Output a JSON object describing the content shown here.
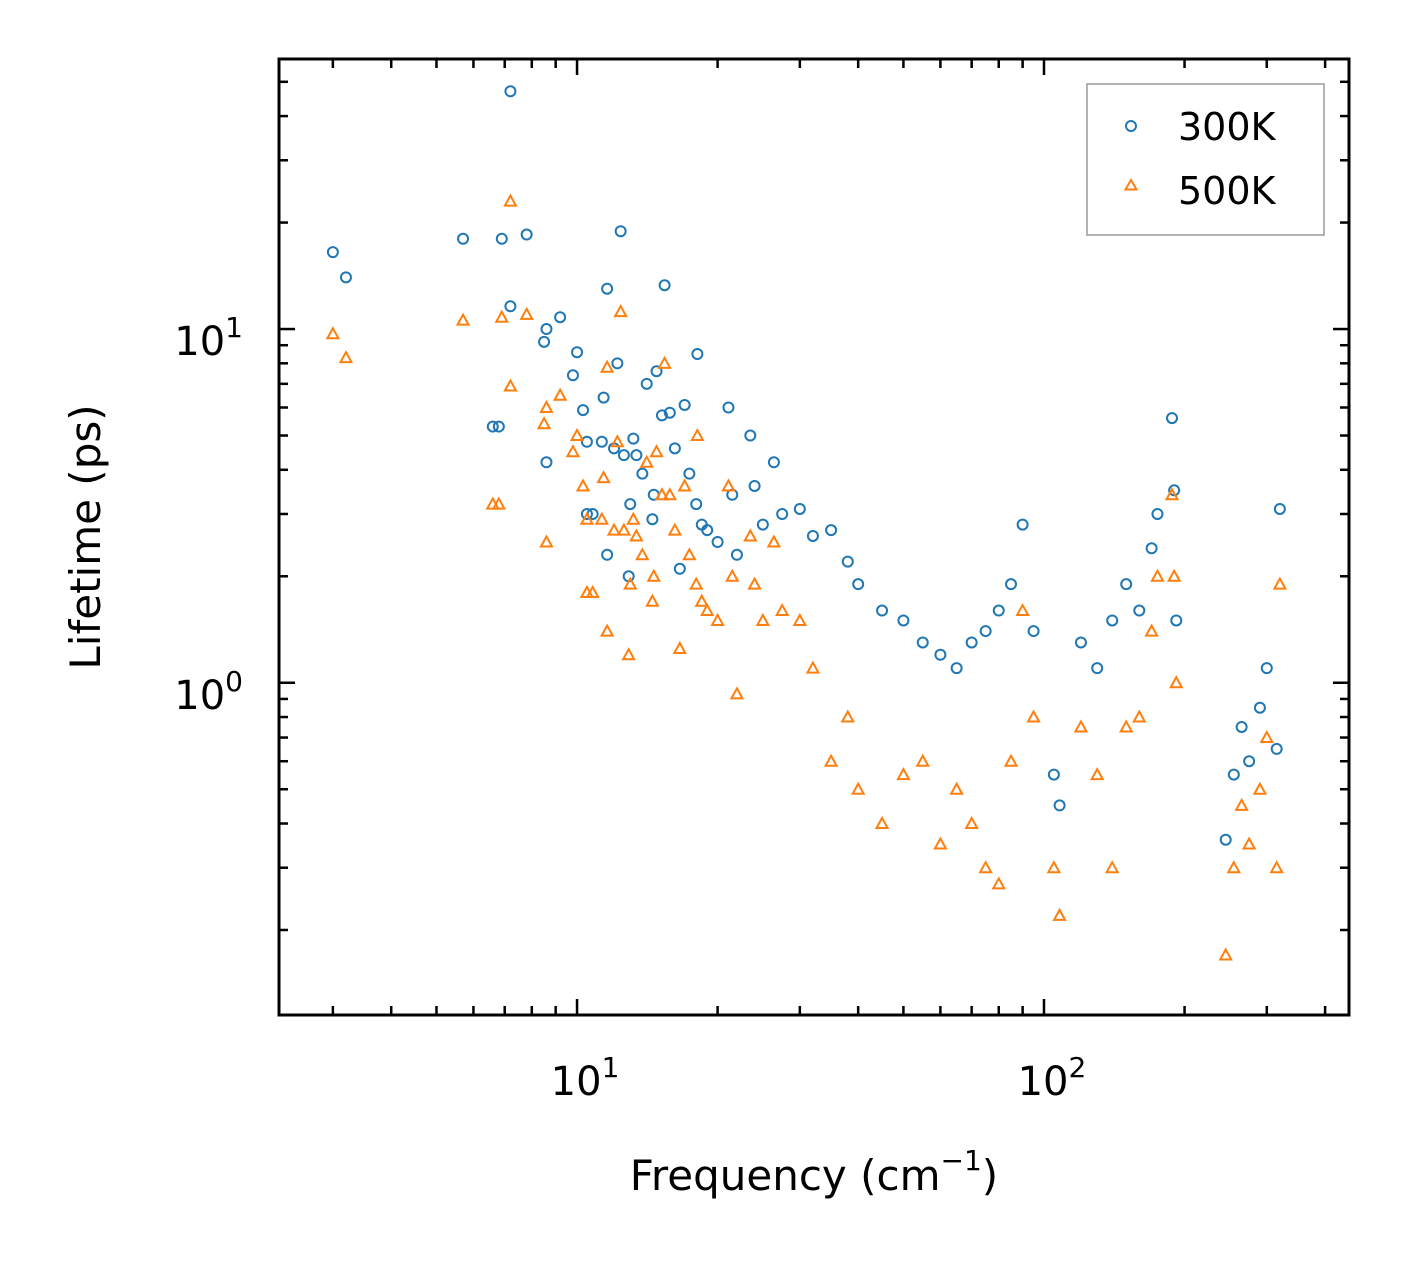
{
  "chart_data": {
    "type": "scatter",
    "title": "",
    "xlabel": "Frequency (cm",
    "xlabel_sup": "−1",
    "xlabel_close": ")",
    "ylabel": "Lifetime (ps)",
    "xscale": "log",
    "yscale": "log",
    "xlim": [
      2.3,
      450
    ],
    "ylim": [
      0.115,
      58
    ],
    "x_ticks": [
      {
        "base": "10",
        "exp": "1",
        "value": 10
      },
      {
        "base": "10",
        "exp": "2",
        "value": 100
      }
    ],
    "y_ticks": [
      {
        "base": "10",
        "exp": "0",
        "value": 1
      },
      {
        "base": "10",
        "exp": "1",
        "value": 10
      }
    ],
    "legend_position": "top-right",
    "series": [
      {
        "name": "300K",
        "marker": "circle",
        "color": "#1f77b4",
        "points": [
          [
            3.0,
            16.5
          ],
          [
            3.2,
            14.0
          ],
          [
            5.7,
            18.0
          ],
          [
            6.6,
            5.3
          ],
          [
            6.8,
            5.3
          ],
          [
            6.9,
            18.0
          ],
          [
            7.2,
            47.0
          ],
          [
            7.2,
            11.6
          ],
          [
            7.8,
            18.5
          ],
          [
            8.5,
            9.2
          ],
          [
            8.6,
            10.0
          ],
          [
            8.6,
            4.2
          ],
          [
            9.2,
            10.8
          ],
          [
            9.8,
            7.4
          ],
          [
            10.0,
            8.6
          ],
          [
            10.3,
            5.9
          ],
          [
            10.5,
            4.8
          ],
          [
            10.5,
            3.0
          ],
          [
            10.8,
            3.0
          ],
          [
            11.3,
            4.8
          ],
          [
            11.4,
            6.4
          ],
          [
            11.6,
            13.0
          ],
          [
            11.6,
            2.3
          ],
          [
            12.0,
            4.6
          ],
          [
            12.2,
            8.0
          ],
          [
            12.4,
            18.9
          ],
          [
            12.6,
            4.4
          ],
          [
            12.9,
            2.0
          ],
          [
            13.0,
            3.2
          ],
          [
            13.2,
            4.9
          ],
          [
            13.4,
            4.4
          ],
          [
            13.8,
            3.9
          ],
          [
            14.1,
            7.0
          ],
          [
            14.5,
            2.9
          ],
          [
            14.6,
            3.4
          ],
          [
            14.8,
            7.6
          ],
          [
            15.2,
            5.7
          ],
          [
            15.4,
            13.3
          ],
          [
            15.8,
            5.8
          ],
          [
            16.2,
            4.6
          ],
          [
            16.6,
            2.1
          ],
          [
            17.0,
            6.1
          ],
          [
            17.4,
            3.9
          ],
          [
            18.0,
            3.2
          ],
          [
            18.1,
            8.5
          ],
          [
            18.5,
            2.8
          ],
          [
            19.0,
            2.7
          ],
          [
            20.0,
            2.5
          ],
          [
            21.1,
            6.0
          ],
          [
            21.5,
            3.4
          ],
          [
            22.0,
            2.3
          ],
          [
            23.5,
            5.0
          ],
          [
            24.0,
            3.6
          ],
          [
            25.0,
            2.8
          ],
          [
            26.4,
            4.2
          ],
          [
            27.5,
            3.0
          ],
          [
            30.0,
            3.1
          ],
          [
            32.0,
            2.6
          ],
          [
            35.0,
            2.7
          ],
          [
            38.0,
            2.2
          ],
          [
            40.0,
            1.9
          ],
          [
            45.0,
            1.6
          ],
          [
            50.0,
            1.5
          ],
          [
            55.0,
            1.3
          ],
          [
            60.0,
            1.2
          ],
          [
            65.0,
            1.1
          ],
          [
            70.0,
            1.3
          ],
          [
            75.0,
            1.4
          ],
          [
            80.0,
            1.6
          ],
          [
            85.0,
            1.9
          ],
          [
            90.0,
            2.8
          ],
          [
            95.0,
            1.4
          ],
          [
            105.0,
            0.55
          ],
          [
            108.0,
            0.45
          ],
          [
            120.0,
            1.3
          ],
          [
            130.0,
            1.1
          ],
          [
            140.0,
            1.5
          ],
          [
            150.0,
            1.9
          ],
          [
            160.0,
            1.6
          ],
          [
            170.0,
            2.4
          ],
          [
            175.0,
            3.0
          ],
          [
            188.0,
            5.6
          ],
          [
            190.0,
            3.5
          ],
          [
            192.0,
            1.5
          ],
          [
            245.0,
            0.36
          ],
          [
            255.0,
            0.55
          ],
          [
            265.0,
            0.75
          ],
          [
            275.0,
            0.6
          ],
          [
            290.0,
            0.85
          ],
          [
            300.0,
            1.1
          ],
          [
            315.0,
            0.65
          ],
          [
            320.0,
            3.1
          ]
        ]
      },
      {
        "name": "500K",
        "marker": "triangle",
        "color": "#ff7f0e",
        "points": [
          [
            3.0,
            9.7
          ],
          [
            3.2,
            8.3
          ],
          [
            5.7,
            10.6
          ],
          [
            6.6,
            3.2
          ],
          [
            6.8,
            3.2
          ],
          [
            6.9,
            10.8
          ],
          [
            7.2,
            23.0
          ],
          [
            7.2,
            6.9
          ],
          [
            7.8,
            11.0
          ],
          [
            8.5,
            5.4
          ],
          [
            8.6,
            6.0
          ],
          [
            8.6,
            2.5
          ],
          [
            9.2,
            6.5
          ],
          [
            9.8,
            4.5
          ],
          [
            10.0,
            5.0
          ],
          [
            10.3,
            3.6
          ],
          [
            10.5,
            2.9
          ],
          [
            10.5,
            1.8
          ],
          [
            10.8,
            1.8
          ],
          [
            11.3,
            2.9
          ],
          [
            11.4,
            3.8
          ],
          [
            11.6,
            7.8
          ],
          [
            11.6,
            1.4
          ],
          [
            12.0,
            2.7
          ],
          [
            12.2,
            4.8
          ],
          [
            12.4,
            11.2
          ],
          [
            12.6,
            2.7
          ],
          [
            12.9,
            1.2
          ],
          [
            13.0,
            1.9
          ],
          [
            13.2,
            2.9
          ],
          [
            13.4,
            2.6
          ],
          [
            13.8,
            2.3
          ],
          [
            14.1,
            4.2
          ],
          [
            14.5,
            1.7
          ],
          [
            14.6,
            2.0
          ],
          [
            14.8,
            4.5
          ],
          [
            15.2,
            3.4
          ],
          [
            15.4,
            8.0
          ],
          [
            15.8,
            3.4
          ],
          [
            16.2,
            2.7
          ],
          [
            16.6,
            1.25
          ],
          [
            17.0,
            3.6
          ],
          [
            17.4,
            2.3
          ],
          [
            18.0,
            1.9
          ],
          [
            18.1,
            5.0
          ],
          [
            18.5,
            1.7
          ],
          [
            19.0,
            1.6
          ],
          [
            20.0,
            1.5
          ],
          [
            21.1,
            3.6
          ],
          [
            21.5,
            2.0
          ],
          [
            22.0,
            0.93
          ],
          [
            23.5,
            2.6
          ],
          [
            24.0,
            1.9
          ],
          [
            25.0,
            1.5
          ],
          [
            26.4,
            2.5
          ],
          [
            27.5,
            1.6
          ],
          [
            30.0,
            1.5
          ],
          [
            32.0,
            1.1
          ],
          [
            35.0,
            0.6
          ],
          [
            38.0,
            0.8
          ],
          [
            40.0,
            0.5
          ],
          [
            45.0,
            0.4
          ],
          [
            50.0,
            0.55
          ],
          [
            55.0,
            0.6
          ],
          [
            60.0,
            0.35
          ],
          [
            65.0,
            0.5
          ],
          [
            70.0,
            0.4
          ],
          [
            75.0,
            0.3
          ],
          [
            80.0,
            0.27
          ],
          [
            85.0,
            0.6
          ],
          [
            90.0,
            1.6
          ],
          [
            95.0,
            0.8
          ],
          [
            105.0,
            0.3
          ],
          [
            108.0,
            0.22
          ],
          [
            120.0,
            0.75
          ],
          [
            130.0,
            0.55
          ],
          [
            140.0,
            0.3
          ],
          [
            150.0,
            0.75
          ],
          [
            160.0,
            0.8
          ],
          [
            170.0,
            1.4
          ],
          [
            175.0,
            2.0
          ],
          [
            188.0,
            3.4
          ],
          [
            190.0,
            2.0
          ],
          [
            192.0,
            1.0
          ],
          [
            245.0,
            0.17
          ],
          [
            255.0,
            0.3
          ],
          [
            265.0,
            0.45
          ],
          [
            275.0,
            0.35
          ],
          [
            290.0,
            0.5
          ],
          [
            300.0,
            0.7
          ],
          [
            315.0,
            0.3
          ],
          [
            320.0,
            1.9
          ]
        ]
      }
    ]
  }
}
